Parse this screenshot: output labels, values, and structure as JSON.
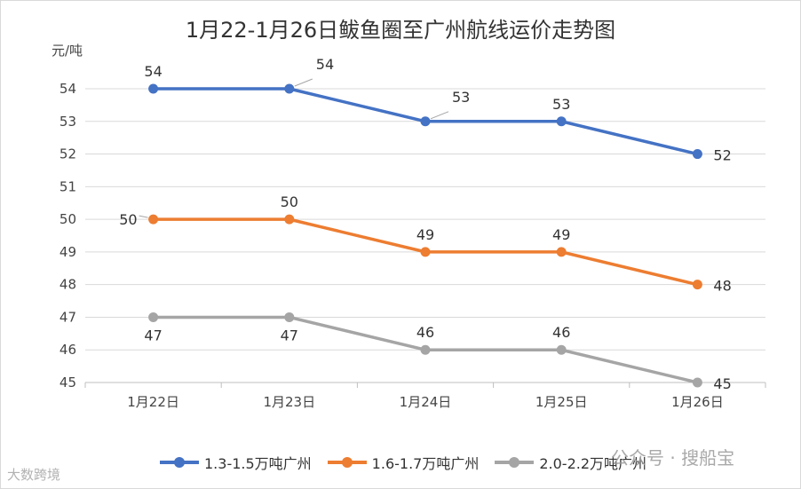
{
  "chart_data": {
    "type": "line",
    "title": "1月22-1月26日鲅鱼圈至广州航线运价走势图",
    "ylabel": "元/吨",
    "xlabel": "",
    "categories": [
      "1月22日",
      "1月23日",
      "1月24日",
      "1月25日",
      "1月26日"
    ],
    "ylim": [
      45,
      54
    ],
    "yticks": [
      45,
      46,
      47,
      48,
      49,
      50,
      51,
      52,
      53,
      54
    ],
    "grid": true,
    "legend": "bottom",
    "series": [
      {
        "name": "1.3-1.5万吨广州",
        "values": [
          54,
          54,
          53,
          53,
          52
        ],
        "color": "#4472c4",
        "label_pos": [
          "above",
          "above-right",
          "above-right",
          "above",
          "right"
        ]
      },
      {
        "name": "1.6-1.7万吨广州",
        "values": [
          50,
          50,
          49,
          49,
          48
        ],
        "color": "#ed7d31",
        "label_pos": [
          "left",
          "above",
          "above",
          "above",
          "right"
        ]
      },
      {
        "name": "2.0-2.2万吨广州",
        "values": [
          47,
          47,
          46,
          46,
          45
        ],
        "color": "#a5a5a5",
        "label_pos": [
          "below",
          "below",
          "above",
          "above",
          "right"
        ]
      }
    ]
  },
  "watermarks": {
    "right": "公众号 · 搜船宝",
    "left": "大数跨境"
  }
}
